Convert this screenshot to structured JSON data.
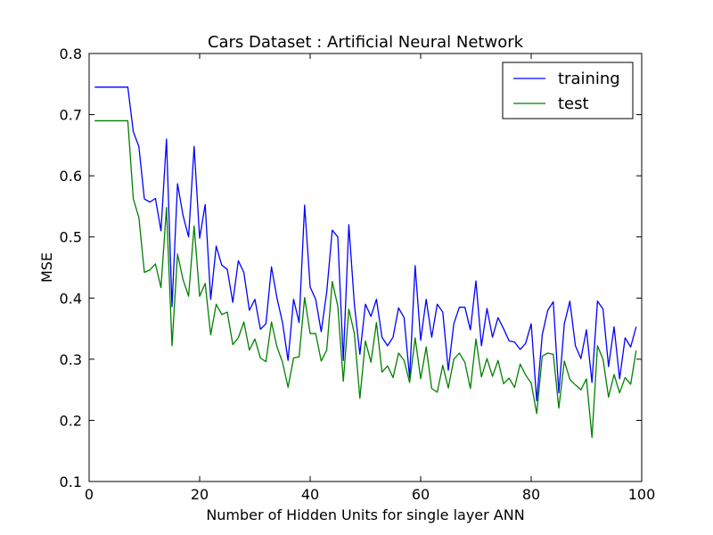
{
  "chart_data": {
    "type": "line",
    "title": "Cars Dataset : Artificial Neural Network",
    "xlabel": "Number of Hidden Units for single layer ANN",
    "ylabel": "MSE",
    "xlim": [
      0,
      100
    ],
    "ylim": [
      0.1,
      0.8
    ],
    "xticks": [
      0,
      20,
      40,
      60,
      80,
      100
    ],
    "xtick_labels": [
      "0",
      "20",
      "40",
      "60",
      "80",
      "100"
    ],
    "yticks": [
      0.1,
      0.2,
      0.3,
      0.4,
      0.5,
      0.6,
      0.7,
      0.8
    ],
    "ytick_labels": [
      "0.1",
      "0.2",
      "0.3",
      "0.4",
      "0.5",
      "0.6",
      "0.7",
      "0.8"
    ],
    "grid": false,
    "legend_position": "top-right",
    "x": [
      1,
      2,
      3,
      4,
      5,
      6,
      7,
      8,
      9,
      10,
      11,
      12,
      13,
      14,
      15,
      16,
      17,
      18,
      19,
      20,
      21,
      22,
      23,
      24,
      25,
      26,
      27,
      28,
      29,
      30,
      31,
      32,
      33,
      34,
      35,
      36,
      37,
      38,
      39,
      40,
      41,
      42,
      43,
      44,
      45,
      46,
      47,
      48,
      49,
      50,
      51,
      52,
      53,
      54,
      55,
      56,
      57,
      58,
      59,
      60,
      61,
      62,
      63,
      64,
      65,
      66,
      67,
      68,
      69,
      70,
      71,
      72,
      73,
      74,
      75,
      76,
      77,
      78,
      79,
      80,
      81,
      82,
      83,
      84,
      85,
      86,
      87,
      88,
      89,
      90,
      91,
      92,
      93,
      94,
      95,
      96,
      97,
      98,
      99
    ],
    "series": [
      {
        "name": "training",
        "color": "#0000ff",
        "values": [
          0.745,
          0.745,
          0.745,
          0.745,
          0.745,
          0.745,
          0.745,
          0.672,
          0.648,
          0.562,
          0.557,
          0.563,
          0.51,
          0.66,
          0.386,
          0.587,
          0.535,
          0.5,
          0.648,
          0.498,
          0.553,
          0.398,
          0.485,
          0.454,
          0.447,
          0.393,
          0.461,
          0.442,
          0.38,
          0.398,
          0.349,
          0.358,
          0.451,
          0.4,
          0.36,
          0.298,
          0.398,
          0.36,
          0.552,
          0.418,
          0.398,
          0.345,
          0.41,
          0.511,
          0.5,
          0.298,
          0.52,
          0.39,
          0.308,
          0.39,
          0.37,
          0.398,
          0.336,
          0.322,
          0.336,
          0.384,
          0.368,
          0.27,
          0.453,
          0.331,
          0.398,
          0.336,
          0.39,
          0.377,
          0.282,
          0.358,
          0.385,
          0.385,
          0.348,
          0.428,
          0.322,
          0.383,
          0.336,
          0.368,
          0.35,
          0.33,
          0.328,
          0.316,
          0.326,
          0.358,
          0.232,
          0.34,
          0.38,
          0.394,
          0.245,
          0.358,
          0.395,
          0.322,
          0.301,
          0.348,
          0.262,
          0.395,
          0.382,
          0.288,
          0.353,
          0.268,
          0.335,
          0.32,
          0.353
        ]
      },
      {
        "name": "test",
        "color": "#008000",
        "values": [
          0.69,
          0.69,
          0.69,
          0.69,
          0.69,
          0.69,
          0.69,
          0.562,
          0.532,
          0.442,
          0.446,
          0.456,
          0.417,
          0.548,
          0.322,
          0.472,
          0.43,
          0.403,
          0.518,
          0.403,
          0.424,
          0.34,
          0.39,
          0.373,
          0.377,
          0.324,
          0.335,
          0.361,
          0.315,
          0.333,
          0.302,
          0.296,
          0.361,
          0.32,
          0.295,
          0.254,
          0.302,
          0.304,
          0.401,
          0.342,
          0.342,
          0.297,
          0.315,
          0.427,
          0.387,
          0.264,
          0.382,
          0.342,
          0.236,
          0.33,
          0.295,
          0.36,
          0.279,
          0.289,
          0.27,
          0.31,
          0.298,
          0.262,
          0.335,
          0.268,
          0.32,
          0.252,
          0.246,
          0.29,
          0.253,
          0.3,
          0.31,
          0.295,
          0.252,
          0.333,
          0.271,
          0.301,
          0.272,
          0.298,
          0.26,
          0.269,
          0.254,
          0.292,
          0.274,
          0.261,
          0.211,
          0.305,
          0.31,
          0.308,
          0.22,
          0.297,
          0.267,
          0.258,
          0.25,
          0.268,
          0.172,
          0.322,
          0.3,
          0.238,
          0.275,
          0.245,
          0.27,
          0.259,
          0.314
        ]
      }
    ]
  }
}
